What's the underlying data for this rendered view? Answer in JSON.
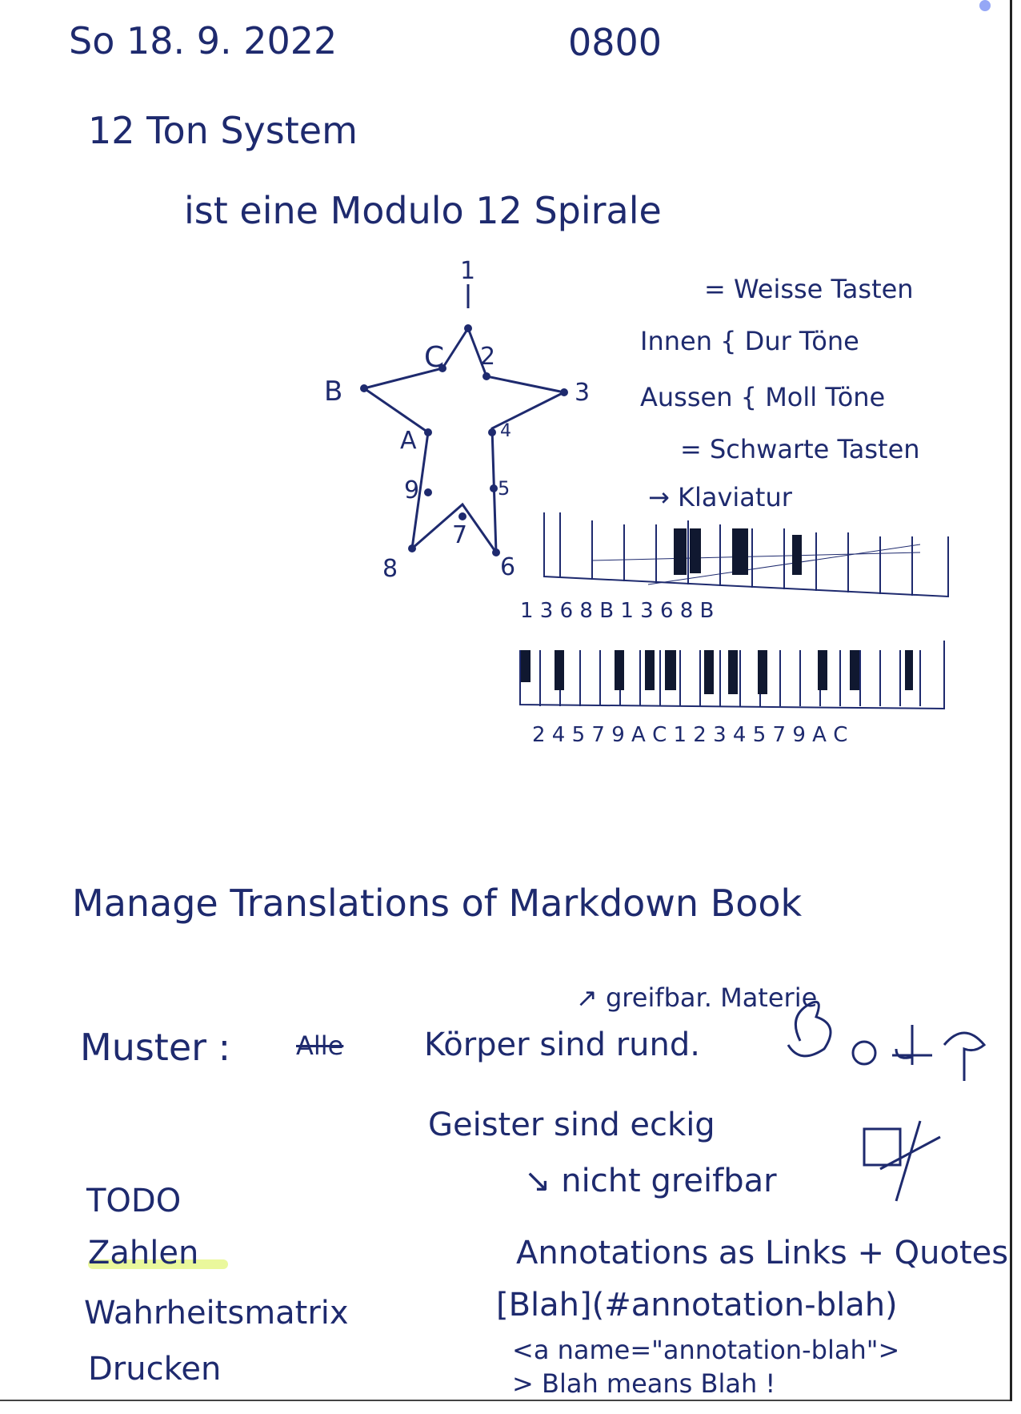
{
  "header": {
    "date": "So 18. 9. 2022",
    "time": "0800"
  },
  "section1": {
    "title": "12 Ton System",
    "subtitle": "ist eine Modulo 12 Spirale",
    "notes": [
      "= Weisse Tasten",
      "Innen { Dur Töne",
      "Aussen { Moll Töne",
      "= Schwarte Tasten",
      "→ Klaviatur"
    ],
    "star_labels": [
      "1",
      "2",
      "3",
      "4",
      "5",
      "6",
      "7",
      "8",
      "9",
      "A",
      "B",
      "C"
    ],
    "keyboard_top_labels": "1 3 6 8 B 1 3 6 8 B",
    "keyboard_bottom_labels": "2 4 5 7 9 A C 1 2 3 4 5 7 9 A C"
  },
  "section2": {
    "heading": "Manage Translations of Markdown Book",
    "pattern_label": "Muster :",
    "pattern_struck": "Alle",
    "pattern_line1": "Körper sind rund.",
    "pattern_line1_note": "↗ greifbar. Materie",
    "pattern_line2": "Geister sind eckig",
    "pattern_line3": "↘ nicht greifbar"
  },
  "todo": {
    "title": "TODO",
    "items": [
      "Zahlen",
      "Wahrheitsmatrix",
      "Drucken"
    ]
  },
  "annotations": {
    "title": "Annotations as Links + Quotes",
    "line1": "[Blah](#annotation-blah)",
    "line2": "<a name=\"annotation-blah\">",
    "line3": "> Blah means Blah !"
  }
}
